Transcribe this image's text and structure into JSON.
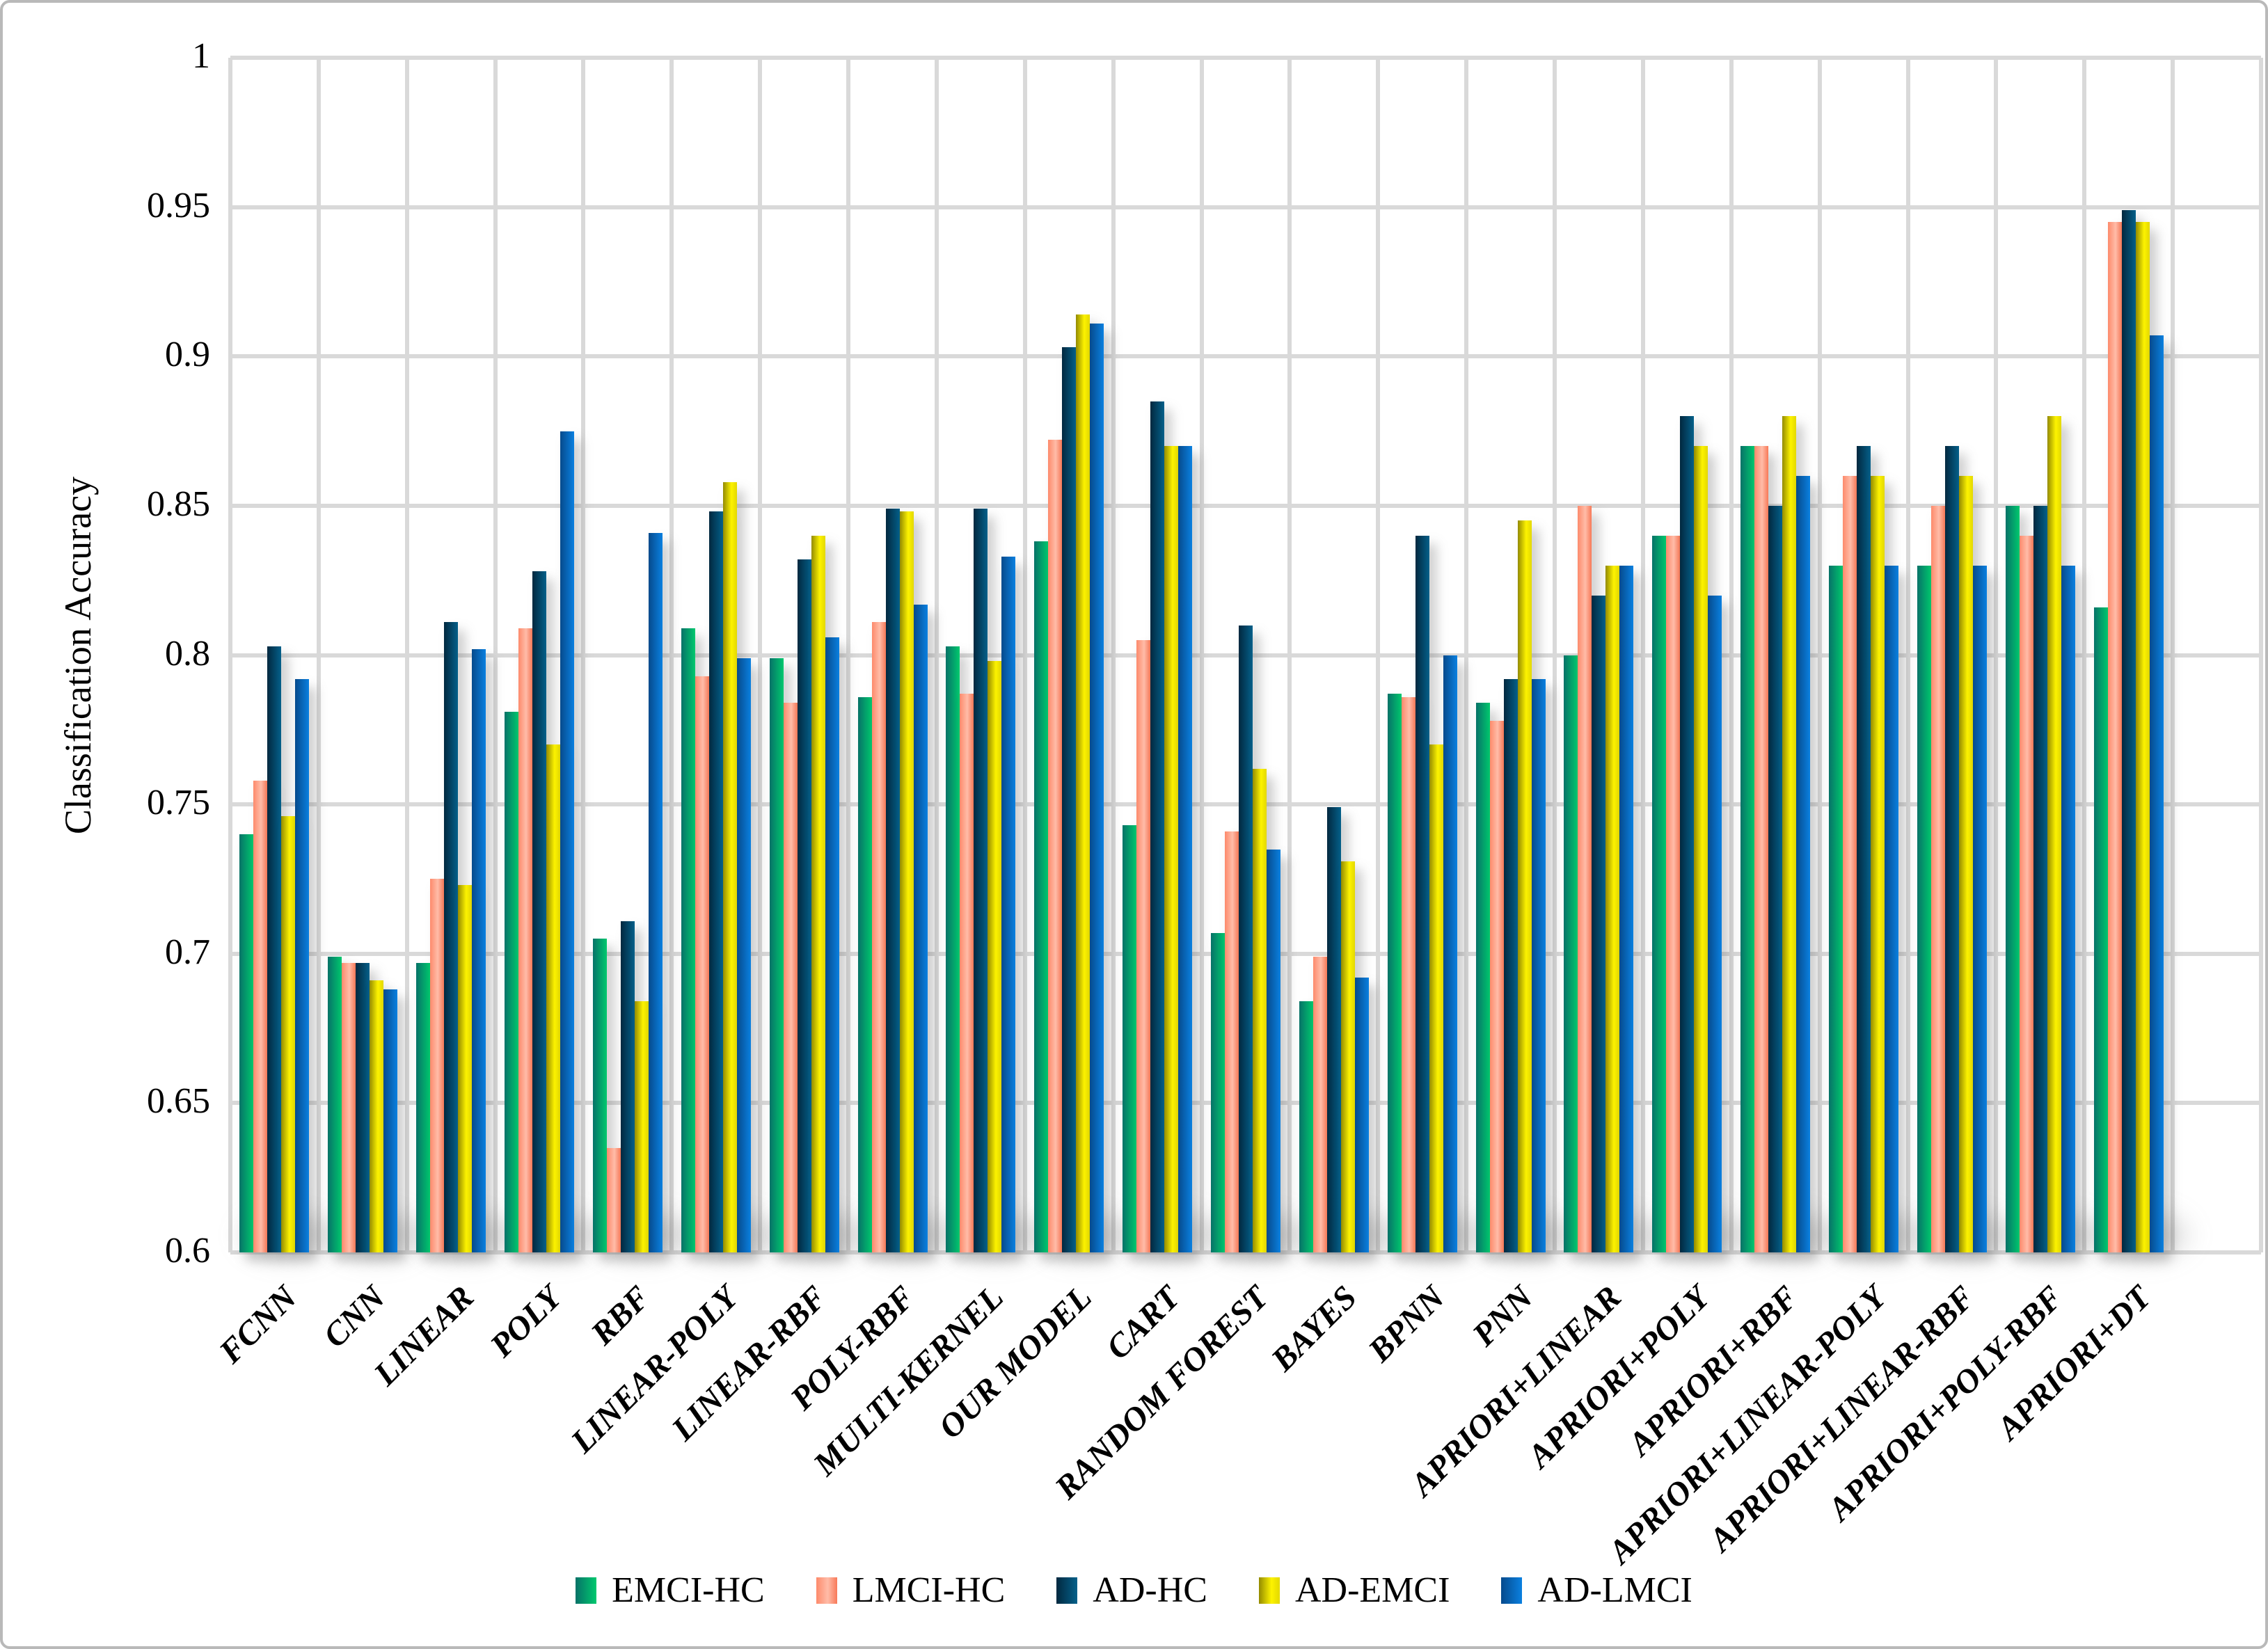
{
  "figure": {
    "background": "#ffffff",
    "border_color": "#b9b9b9",
    "gridline_color": "#d9d9d9"
  },
  "y_axis": {
    "title": "Classification Accuracy",
    "tick_labels": [
      "1",
      "0.95",
      "0.9",
      "0.85",
      "0.8",
      "0.75",
      "0.7",
      "0.65",
      "0.6"
    ]
  },
  "legend": {
    "position": "bottom-center",
    "labels": [
      "EMCI-HC",
      "LMCI-HC",
      "AD-HC",
      "AD-EMCI",
      "AD-LMCI"
    ]
  },
  "chart_data": {
    "type": "bar",
    "title": "",
    "xlabel": "",
    "ylabel": "Classification Accuracy",
    "ylim": [
      0.6,
      1.0
    ],
    "ytick_step": 0.05,
    "yticks": [
      1.0,
      0.95,
      0.9,
      0.85,
      0.8,
      0.75,
      0.7,
      0.65,
      0.6
    ],
    "grid": true,
    "legend_position": "bottom",
    "categories": [
      "FCNN",
      "CNN",
      "LINEAR",
      "POLY",
      "RBF",
      "LINEAR-POLY",
      "LINEAR-RBF",
      "POLY-RBF",
      "MULTI-KERNEL",
      "OUR MODEL",
      "CART",
      "RANDOM FOREST",
      "BAYES",
      "BPNN",
      "PNN",
      "APRIORI+LINEAR",
      "APRIORI+POLY",
      "APRIORI+RBF",
      "APRIORI+LINEAR-POLY",
      "APRIORI+LINEAR-RBF",
      "APRIORI+POLY-RBF",
      "APRIORI+DT"
    ],
    "series": [
      {
        "name": "EMCI-HC",
        "color_start": "#077268",
        "color_end": "#00c96e",
        "values": [
          0.74,
          0.699,
          0.697,
          0.781,
          0.705,
          0.809,
          0.799,
          0.786,
          0.803,
          0.838,
          0.743,
          0.707,
          0.684,
          0.787,
          0.784,
          0.8,
          0.84,
          0.87,
          0.83,
          0.83,
          0.85,
          0.816
        ]
      },
      {
        "name": "LMCI-HC",
        "color_start": "#fd8a6b",
        "color_end": "#f87958",
        "values": [
          0.758,
          0.697,
          0.725,
          0.809,
          0.635,
          0.793,
          0.784,
          0.811,
          0.787,
          0.872,
          0.805,
          0.741,
          0.699,
          0.786,
          0.778,
          0.85,
          0.84,
          0.87,
          0.86,
          0.85,
          0.84,
          0.945
        ]
      },
      {
        "name": "AD-HC",
        "color_start": "#02283f",
        "color_end": "#04608a",
        "values": [
          0.803,
          0.697,
          0.811,
          0.828,
          0.711,
          0.848,
          0.832,
          0.849,
          0.849,
          0.903,
          0.885,
          0.81,
          0.749,
          0.84,
          0.792,
          0.82,
          0.88,
          0.85,
          0.87,
          0.87,
          0.85,
          0.949
        ]
      },
      {
        "name": "AD-EMCI",
        "color_start": "#938a00",
        "color_end": "#e3d800",
        "values": [
          0.746,
          0.691,
          0.723,
          0.77,
          0.684,
          0.858,
          0.84,
          0.848,
          0.798,
          0.914,
          0.87,
          0.762,
          0.731,
          0.77,
          0.845,
          0.83,
          0.87,
          0.88,
          0.86,
          0.86,
          0.88,
          0.945
        ]
      },
      {
        "name": "AD-LMCI",
        "color_start": "#064a8c",
        "color_end": "#0a80e0",
        "values": [
          0.792,
          0.688,
          0.802,
          0.875,
          0.841,
          0.799,
          0.806,
          0.817,
          0.833,
          0.911,
          0.87,
          0.735,
          0.692,
          0.8,
          0.792,
          0.83,
          0.82,
          0.86,
          0.83,
          0.83,
          0.83,
          0.907
        ]
      }
    ]
  }
}
